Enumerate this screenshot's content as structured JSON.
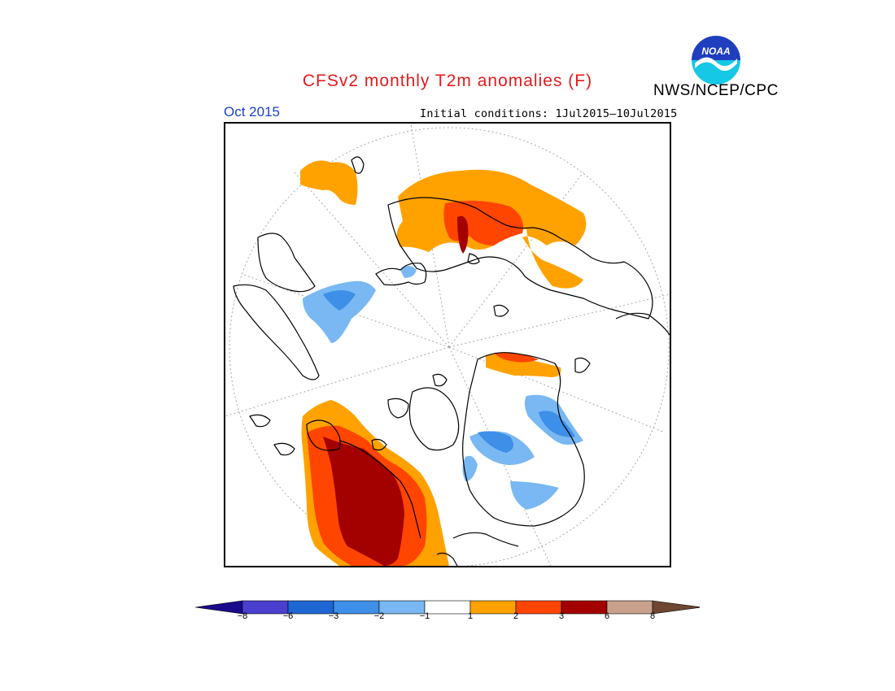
{
  "title": "CFSv2 monthly T2m anomalies (F)",
  "agency": "NWS/NCEP/CPC",
  "logo_text": "NOAA",
  "month": "Oct 2015",
  "initial_conditions": "Initial conditions: 1Jul2015—10Jul2015",
  "colors": {
    "title": "#e41a1c",
    "month": "#1c3fd0"
  },
  "colorbar": {
    "labels": [
      "−8",
      "−6",
      "−3",
      "−2",
      "−1",
      "1",
      "2",
      "3",
      "6",
      "8"
    ],
    "bins": [
      {
        "lo": -999,
        "hi": -8,
        "color": "#1a0a8c"
      },
      {
        "lo": -8,
        "hi": -6,
        "color": "#4b3fcf"
      },
      {
        "lo": -6,
        "hi": -3,
        "color": "#1e66d2"
      },
      {
        "lo": -3,
        "hi": -2,
        "color": "#3d8fe8"
      },
      {
        "lo": -2,
        "hi": -1,
        "color": "#79b8f2"
      },
      {
        "lo": -1,
        "hi": 1,
        "color": "#ffffff"
      },
      {
        "lo": 1,
        "hi": 2,
        "color": "#ffa200"
      },
      {
        "lo": 2,
        "hi": 3,
        "color": "#ff4500"
      },
      {
        "lo": 3,
        "hi": 6,
        "color": "#a30000"
      },
      {
        "lo": 6,
        "hi": 8,
        "color": "#c9a08c"
      },
      {
        "lo": 8,
        "hi": 999,
        "color": "#6e4632"
      }
    ]
  }
}
